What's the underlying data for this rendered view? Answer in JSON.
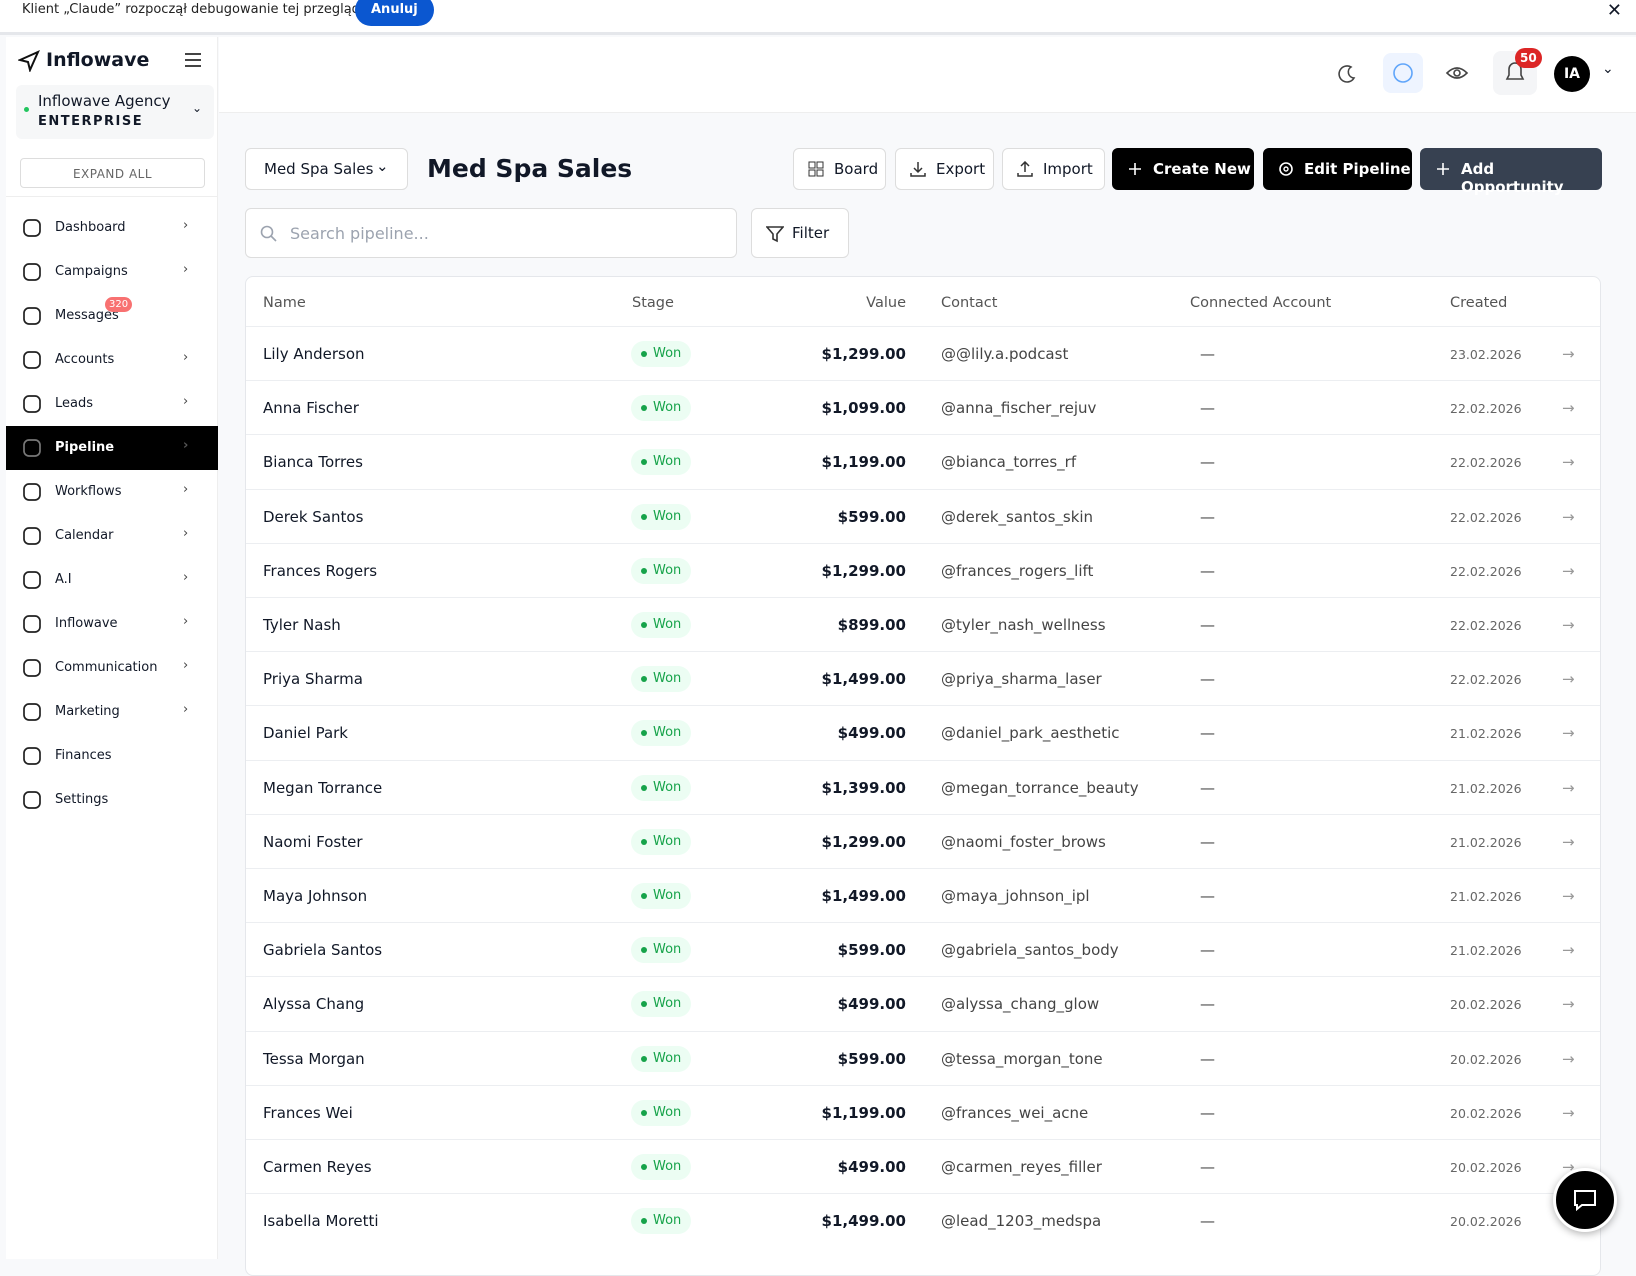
{
  "banner": {
    "text": "Klient „Claude” rozpoczął debugowanie tej przeglądarki",
    "cancel": "Anuluj"
  },
  "sidebar": {
    "brand": "Inflowave",
    "workspace": {
      "name": "Inflowave Agency",
      "plan": "ENTERPRISE"
    },
    "expand_all": "EXPAND ALL",
    "nav": [
      {
        "label": "Dashboard",
        "has_submenu": true
      },
      {
        "label": "Campaigns",
        "has_submenu": true
      },
      {
        "label": "Messages",
        "has_submenu": false,
        "badge": "320"
      },
      {
        "label": "Accounts",
        "has_submenu": true
      },
      {
        "label": "Leads",
        "has_submenu": true
      },
      {
        "label": "Pipeline",
        "has_submenu": true,
        "active": true
      },
      {
        "label": "Workflows",
        "has_submenu": true
      },
      {
        "label": "Calendar",
        "has_submenu": true
      },
      {
        "label": "A.I",
        "has_submenu": true
      },
      {
        "label": "Inflowave",
        "has_submenu": true
      },
      {
        "label": "Communication",
        "has_submenu": true
      },
      {
        "label": "Marketing",
        "has_submenu": true
      },
      {
        "label": "Finances",
        "has_submenu": false
      },
      {
        "label": "Settings",
        "has_submenu": false
      }
    ]
  },
  "header": {
    "notifications": "50",
    "avatar": "IA"
  },
  "pipeline": {
    "selector": "Med Spa Sales",
    "title": "Med Spa Sales",
    "buttons": {
      "board": "Board",
      "export": "Export",
      "import": "Import",
      "create_new": "Create New",
      "edit_pipeline": "Edit Pipeline",
      "add_opportunity": "Add Opportunity"
    },
    "search_placeholder": "Search pipeline...",
    "filter": "Filter"
  },
  "table": {
    "columns": [
      "Name",
      "Stage",
      "Value",
      "Contact",
      "Connected Account",
      "Created"
    ],
    "rows": [
      [
        "Lily Anderson",
        "Won",
        "$1,299.00",
        "@@lily.a.podcast",
        "—",
        "23.02.2026"
      ],
      [
        "Anna Fischer",
        "Won",
        "$1,099.00",
        "@anna_fischer_rejuv",
        "—",
        "22.02.2026"
      ],
      [
        "Bianca Torres",
        "Won",
        "$1,199.00",
        "@bianca_torres_rf",
        "—",
        "22.02.2026"
      ],
      [
        "Derek Santos",
        "Won",
        "$599.00",
        "@derek_santos_skin",
        "—",
        "22.02.2026"
      ],
      [
        "Frances Rogers",
        "Won",
        "$1,299.00",
        "@frances_rogers_lift",
        "—",
        "22.02.2026"
      ],
      [
        "Tyler Nash",
        "Won",
        "$899.00",
        "@tyler_nash_wellness",
        "—",
        "22.02.2026"
      ],
      [
        "Priya Sharma",
        "Won",
        "$1,499.00",
        "@priya_sharma_laser",
        "—",
        "22.02.2026"
      ],
      [
        "Daniel Park",
        "Won",
        "$499.00",
        "@daniel_park_aesthetic",
        "—",
        "21.02.2026"
      ],
      [
        "Megan Torrance",
        "Won",
        "$1,399.00",
        "@megan_torrance_beauty",
        "—",
        "21.02.2026"
      ],
      [
        "Naomi Foster",
        "Won",
        "$1,299.00",
        "@naomi_foster_brows",
        "—",
        "21.02.2026"
      ],
      [
        "Maya Johnson",
        "Won",
        "$1,499.00",
        "@maya_johnson_ipl",
        "—",
        "21.02.2026"
      ],
      [
        "Gabriela Santos",
        "Won",
        "$599.00",
        "@gabriela_santos_body",
        "—",
        "21.02.2026"
      ],
      [
        "Alyssa Chang",
        "Won",
        "$499.00",
        "@alyssa_chang_glow",
        "—",
        "20.02.2026"
      ],
      [
        "Tessa Morgan",
        "Won",
        "$599.00",
        "@tessa_morgan_tone",
        "—",
        "20.02.2026"
      ],
      [
        "Frances Wei",
        "Won",
        "$1,199.00",
        "@frances_wei_acne",
        "—",
        "20.02.2026"
      ],
      [
        "Carmen Reyes",
        "Won",
        "$499.00",
        "@carmen_reyes_filler",
        "—",
        "20.02.2026"
      ],
      [
        "Isabella Moretti",
        "Won",
        "$1,499.00",
        "@lead_1203_medspa",
        "—",
        "20.02.2026"
      ]
    ]
  }
}
